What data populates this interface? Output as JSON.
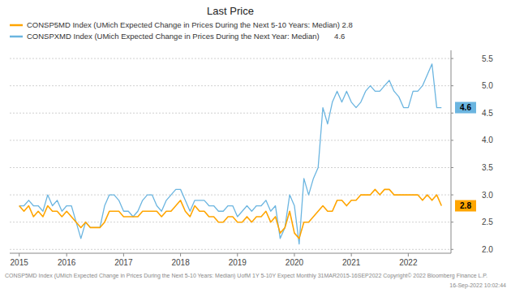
{
  "chart_data": {
    "type": "line",
    "title": "Last Price",
    "categories": [
      "2015",
      null,
      null,
      null,
      null,
      null,
      null,
      null,
      null,
      null,
      "2016",
      null,
      null,
      null,
      null,
      null,
      null,
      null,
      null,
      null,
      null,
      null,
      "2017",
      null,
      null,
      null,
      null,
      null,
      null,
      null,
      null,
      null,
      null,
      null,
      "2018",
      null,
      null,
      null,
      null,
      null,
      null,
      null,
      null,
      null,
      null,
      null,
      "2019",
      null,
      null,
      null,
      null,
      null,
      null,
      null,
      null,
      null,
      null,
      null,
      "2020",
      null,
      null,
      null,
      null,
      null,
      null,
      null,
      null,
      null,
      null,
      null,
      "2021",
      null,
      null,
      null,
      null,
      null,
      null,
      null,
      null,
      null,
      null,
      null,
      "2022",
      null,
      null,
      null,
      null,
      null,
      null,
      null
    ],
    "series": [
      {
        "name": "CONSP5MD Index (UMich Expected Change in Prices During the Next 5-10 Years: Median) 2.8",
        "color": "#FFA500",
        "values": [
          2.8,
          2.7,
          2.8,
          2.6,
          2.7,
          2.6,
          2.8,
          2.7,
          2.7,
          2.6,
          2.7,
          2.6,
          2.5,
          2.4,
          2.5,
          2.4,
          2.4,
          2.4,
          2.5,
          2.7,
          2.7,
          2.7,
          2.6,
          2.6,
          2.6,
          2.6,
          2.7,
          2.7,
          2.7,
          2.7,
          2.6,
          2.7,
          2.7,
          2.8,
          2.9,
          2.7,
          2.6,
          2.8,
          2.7,
          2.7,
          2.6,
          2.6,
          2.5,
          2.5,
          2.6,
          2.6,
          2.5,
          2.5,
          2.6,
          2.5,
          2.6,
          2.6,
          2.7,
          2.5,
          2.6,
          2.3,
          2.4,
          2.7,
          2.3,
          2.2,
          2.5,
          2.5,
          2.6,
          2.7,
          2.8,
          2.7,
          2.7,
          2.9,
          2.9,
          2.8,
          2.9,
          2.9,
          3.0,
          3.0,
          3.0,
          3.1,
          3.0,
          3.1,
          3.1,
          3.0,
          3.0,
          3.0,
          3.0,
          3.0,
          3.0,
          2.9,
          3.0,
          2.9,
          3.0,
          2.8
        ]
      },
      {
        "name": "CONSPXMD Index (UMich Expected Change in Prices During the Next Year: Median)       4.6",
        "color": "#6BB5E0",
        "values": [
          2.8,
          2.8,
          2.9,
          2.8,
          2.8,
          2.7,
          3.0,
          2.8,
          2.9,
          2.7,
          2.8,
          2.8,
          2.5,
          2.2,
          2.5,
          2.4,
          2.4,
          2.4,
          2.8,
          3.0,
          3.0,
          2.9,
          2.7,
          2.7,
          2.6,
          2.7,
          2.9,
          3.0,
          3.0,
          2.8,
          2.7,
          2.9,
          3.0,
          3.1,
          3.1,
          2.9,
          2.7,
          2.9,
          2.9,
          2.9,
          2.8,
          2.8,
          2.7,
          2.7,
          2.8,
          2.8,
          2.6,
          2.7,
          2.8,
          2.7,
          2.8,
          2.8,
          2.9,
          2.7,
          2.8,
          2.2,
          2.4,
          3.0,
          2.8,
          2.1,
          3.3,
          3.0,
          3.3,
          3.5,
          4.6,
          4.3,
          4.7,
          4.9,
          4.7,
          4.9,
          4.7,
          4.6,
          4.7,
          4.9,
          5.0,
          4.9,
          4.9,
          5.0,
          5.1,
          4.9,
          4.8,
          4.6,
          4.6,
          4.9,
          4.9,
          5.0,
          5.2,
          5.4,
          4.6,
          4.6
        ]
      }
    ],
    "ylim": [
      1.93,
      5.65
    ],
    "yticks": [
      {
        "value": 2.0,
        "label": "2.0"
      },
      2.5,
      {
        "value": 3.0,
        "label": "3.0"
      },
      3.5,
      {
        "value": 4.0,
        "label": "4.0"
      },
      4.5,
      {
        "value": 5.0,
        "label": "5.0"
      },
      5.5
    ],
    "grid": true,
    "legend": "upper left",
    "annotations": [
      {
        "text": "2.8",
        "y": 2.8,
        "color": "#FFA500"
      },
      {
        "text": "4.6",
        "y": 4.6,
        "color": "#6BB5E0"
      }
    ],
    "footer": [
      "CONSP5MD Index (UMich Expected Change in Prices During the Next 5-10 Years: Median) UofM 1Y 5-10Y Expect  Monthly 31MAR2015-16SEP2022    Copyright© 2022 Bloomberg Finance L.P.",
      "16-Sep-2022 10:02:44"
    ]
  }
}
